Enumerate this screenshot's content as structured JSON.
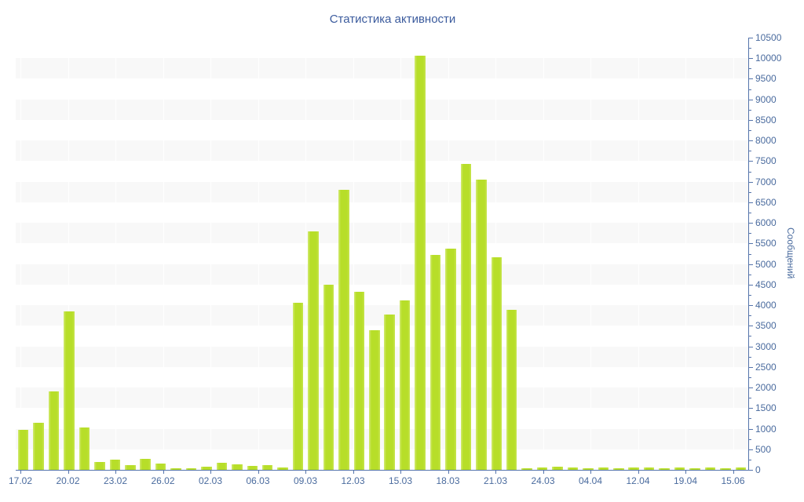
{
  "title": "Статистика активности",
  "colors": {
    "bar": "#b7de29",
    "bar_edge_highlight": "#d3ea74",
    "axis_line": "#5574ab",
    "tick_label": "#4a6b9e",
    "title_text": "#3b5b9d",
    "grid_band": "#f8f8f8",
    "background": "#ffffff"
  },
  "chart_data": {
    "type": "bar",
    "title": "Статистика активности",
    "xlabel": "",
    "ylabel": "Сообщений",
    "ylim": [
      0,
      10500
    ],
    "y_tick_interval": 500,
    "y_minor_tick_interval": 250,
    "y_axis_side": "right",
    "legend": "none",
    "grid": "alternating horizontal bands",
    "x_tick_labels": [
      "17.02",
      "20.02",
      "23.02",
      "26.02",
      "02.03",
      "06.03",
      "09.03",
      "12.03",
      "15.03",
      "18.03",
      "21.03",
      "24.03",
      "04.04",
      "12.04",
      "19.04",
      "15.06"
    ],
    "y_tick_labels": [
      0,
      500,
      1000,
      1500,
      2000,
      2500,
      3000,
      3500,
      4000,
      4500,
      5000,
      5500,
      6000,
      6500,
      7000,
      7500,
      8000,
      8500,
      9000,
      9500,
      10000,
      10500
    ],
    "values": [
      970,
      1140,
      1900,
      3850,
      1030,
      190,
      250,
      110,
      270,
      150,
      40,
      40,
      80,
      170,
      130,
      95,
      115,
      65,
      4060,
      5800,
      4500,
      6800,
      4330,
      3400,
      3770,
      4120,
      10060,
      5220,
      5370,
      7430,
      7060,
      5160,
      3890,
      40,
      60,
      80,
      60,
      40,
      50,
      40,
      60,
      50,
      30,
      50,
      40,
      50,
      40,
      50
    ]
  }
}
